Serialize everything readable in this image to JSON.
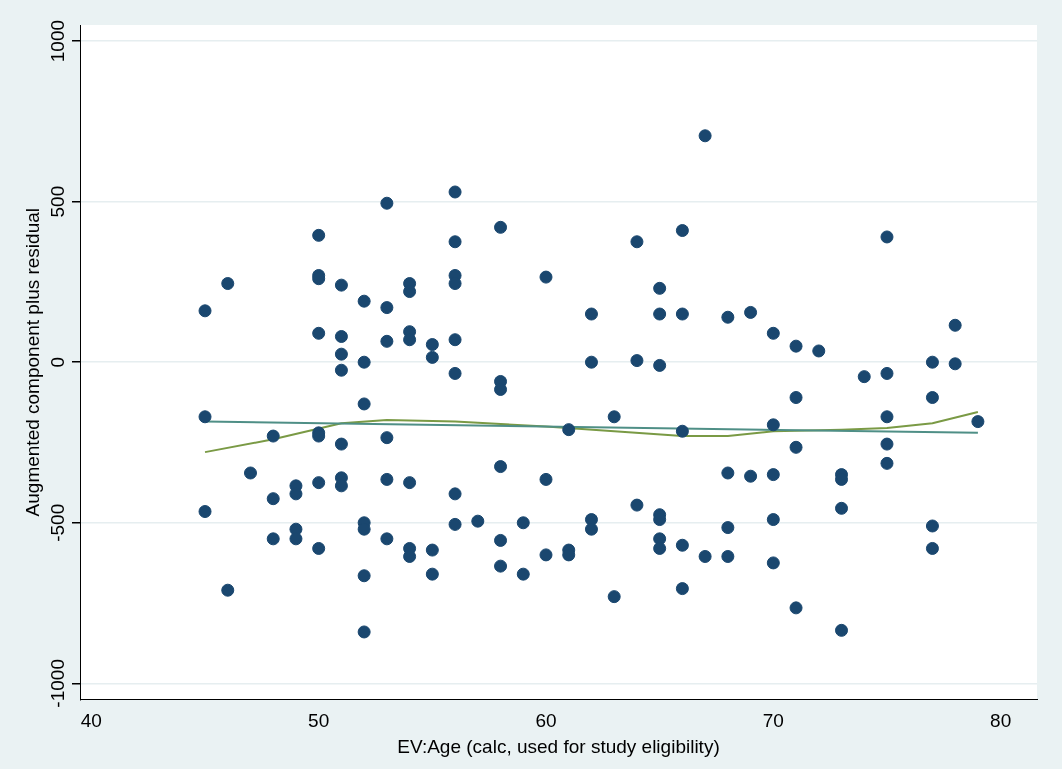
{
  "chart_data": {
    "type": "scatter",
    "xlabel": "EV:Age (calc, used for study eligibility)",
    "ylabel": "Augmented component plus residual",
    "xlim": [
      39.5,
      81.6
    ],
    "ylim": [
      -1050,
      1050
    ],
    "xticks": [
      40,
      50,
      60,
      70,
      80
    ],
    "yticks": [
      -1000,
      -500,
      0,
      500,
      1000
    ],
    "grid": "y",
    "legend": false,
    "marker": "circle",
    "series": [
      {
        "color": "#1a476f",
        "x": [
          45,
          45,
          45,
          46,
          46,
          47,
          48,
          48,
          48,
          49,
          49,
          49,
          49,
          50,
          50,
          50,
          50,
          50,
          50,
          50,
          50,
          51,
          51,
          51,
          51,
          51,
          51,
          51,
          52,
          52,
          52,
          52,
          52,
          52,
          52,
          53,
          53,
          53,
          53,
          53,
          53,
          54,
          54,
          54,
          54,
          54,
          54,
          54,
          55,
          55,
          55,
          55,
          56,
          56,
          56,
          56,
          56,
          56,
          56,
          56,
          57,
          58,
          58,
          58,
          58,
          58,
          58,
          59,
          59,
          60,
          60,
          60,
          61,
          61,
          61,
          62,
          62,
          62,
          62,
          63,
          63,
          64,
          64,
          64,
          65,
          65,
          65,
          65,
          65,
          65,
          65,
          66,
          66,
          66,
          66,
          66,
          67,
          67,
          68,
          68,
          68,
          68,
          69,
          69,
          70,
          70,
          70,
          70,
          70,
          71,
          71,
          71,
          71,
          72,
          73,
          73,
          73,
          73,
          74,
          75,
          75,
          75,
          75,
          75,
          77,
          77,
          77,
          77,
          78,
          78,
          79
        ],
        "values": [
          160,
          -170,
          -465,
          245,
          -710,
          -345,
          -230,
          -425,
          -550,
          -385,
          -410,
          -520,
          -550,
          395,
          270,
          260,
          90,
          -220,
          -230,
          -375,
          -580,
          240,
          80,
          25,
          -25,
          -255,
          -360,
          -385,
          190,
          0,
          -130,
          -500,
          -520,
          -665,
          -840,
          495,
          170,
          65,
          -235,
          -365,
          -550,
          245,
          220,
          95,
          70,
          -375,
          -580,
          -605,
          55,
          15,
          -585,
          -660,
          530,
          375,
          270,
          245,
          70,
          -35,
          -410,
          -505,
          -495,
          420,
          -60,
          -85,
          -325,
          -555,
          -635,
          -500,
          -660,
          265,
          -365,
          -600,
          -210,
          -585,
          -600,
          150,
          0,
          -490,
          -520,
          -170,
          -730,
          375,
          5,
          -445,
          230,
          150,
          -10,
          -475,
          -490,
          -550,
          -580,
          410,
          150,
          -215,
          -570,
          -705,
          705,
          -605,
          140,
          -345,
          -515,
          -605,
          155,
          -355,
          90,
          -195,
          -350,
          -490,
          -625,
          50,
          -110,
          -265,
          -765,
          35,
          -350,
          -365,
          -455,
          -835,
          -45,
          390,
          -35,
          -170,
          -255,
          -315,
          0,
          -110,
          -510,
          -580,
          115,
          -5,
          -185
        ]
      },
      {
        "type": "line",
        "color": "#4f8f86",
        "marker": "none",
        "x": [
          45,
          79
        ],
        "values": [
          -185,
          -220
        ]
      },
      {
        "type": "line",
        "color": "#7a9a45",
        "marker": "none",
        "x": [
          45,
          48,
          51,
          53,
          56,
          60,
          63,
          66,
          68,
          70,
          73,
          75,
          77,
          79
        ],
        "values": [
          -280,
          -240,
          -190,
          -180,
          -185,
          -200,
          -215,
          -230,
          -230,
          -215,
          -210,
          -205,
          -190,
          -155
        ]
      }
    ]
  }
}
